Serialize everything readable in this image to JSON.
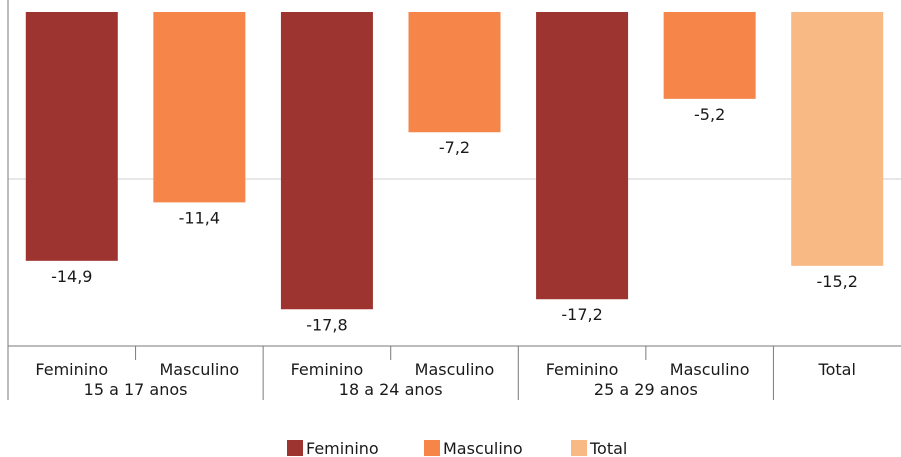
{
  "chart_data": {
    "type": "bar",
    "categories": [
      "Feminino",
      "Masculino",
      "Feminino",
      "Masculino",
      "Feminino",
      "Masculino",
      "Total"
    ],
    "groups": [
      "15 a 17 anos",
      "18 a 24 anos",
      "25 a 29 anos"
    ],
    "values": [
      -14.9,
      -11.4,
      -17.8,
      -7.2,
      -17.2,
      -5.2,
      -15.2
    ],
    "value_labels": [
      "-14,9",
      "-11,4",
      "-17,8",
      "-7,2",
      "-17,2",
      "-5,2",
      "-15,2"
    ],
    "legend": [
      {
        "name": "Feminino",
        "color": "#9e3430"
      },
      {
        "name": "Masculino",
        "color": "#f58549"
      },
      {
        "name": "Total",
        "color": "#f9b984"
      }
    ],
    "bar_series": [
      "Feminino",
      "Masculino",
      "Feminino",
      "Masculino",
      "Feminino",
      "Masculino",
      "Total"
    ],
    "ylim": [
      -20,
      0
    ],
    "grid": true,
    "legend_position": "bottom"
  }
}
